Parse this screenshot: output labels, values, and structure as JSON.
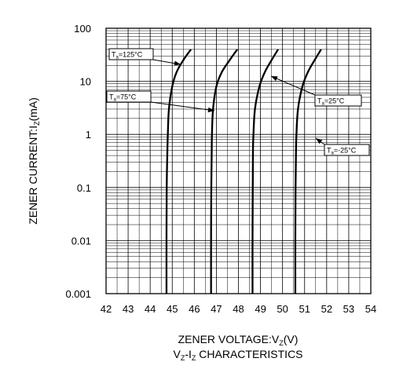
{
  "chart_data": {
    "type": "line",
    "title": "VZ-IZ CHARACTERISTICS",
    "xlabel": "ZENER VOLTAGE:VZ(V)",
    "ylabel": "ZENER CURRENT:IZ(mA)",
    "xlim": [
      42,
      54
    ],
    "ylim": [
      0.001,
      100
    ],
    "y_scale": "log",
    "grid": true,
    "x_ticks": [
      "42",
      "43",
      "44",
      "45",
      "46",
      "47",
      "48",
      "49",
      "50",
      "51",
      "52",
      "53",
      "54"
    ],
    "y_ticks": [
      "0.001",
      "0.01",
      "0.1",
      "1",
      "10",
      "100"
    ],
    "series": [
      {
        "name": "Ta=125°C",
        "x": [
          44.74,
          44.74,
          44.75,
          44.78,
          44.8,
          44.85,
          45.0,
          45.2,
          45.5,
          45.85
        ],
        "y": [
          0.001,
          0.01,
          0.1,
          0.5,
          1,
          3,
          8,
          15,
          25,
          40
        ]
      },
      {
        "name": "Ta=75°C",
        "x": [
          46.76,
          46.76,
          46.77,
          46.79,
          46.8,
          46.85,
          47.0,
          47.25,
          47.6,
          47.95
        ],
        "y": [
          0.001,
          0.01,
          0.1,
          0.5,
          1,
          3,
          8,
          15,
          25,
          40
        ]
      },
      {
        "name": "Ta=25°C",
        "x": [
          48.64,
          48.64,
          48.65,
          48.66,
          48.68,
          48.75,
          48.95,
          49.2,
          49.5,
          49.8
        ],
        "y": [
          0.001,
          0.01,
          0.1,
          0.5,
          1,
          3,
          8,
          15,
          25,
          40
        ]
      },
      {
        "name": "Ta=-25°C",
        "x": [
          50.58,
          50.58,
          50.59,
          50.61,
          50.63,
          50.7,
          50.9,
          51.15,
          51.45,
          51.75
        ],
        "y": [
          0.001,
          0.01,
          0.1,
          0.5,
          1,
          3,
          8,
          15,
          25,
          40
        ]
      }
    ],
    "annotations": [
      {
        "label_main": "T",
        "label_sub": "a",
        "label_rest": "=125°C",
        "series": "Ta=125°C",
        "point": [
          45.6,
          20
        ]
      },
      {
        "label_main": "T",
        "label_sub": "a",
        "label_rest": "=75°C",
        "series": "Ta=75°C",
        "point": [
          46.85,
          2.5
        ]
      },
      {
        "label_main": "T",
        "label_sub": "a",
        "label_rest": "=25°C",
        "series": "Ta=25°C",
        "point": [
          48.7,
          12
        ]
      },
      {
        "label_main": "T",
        "label_sub": "a",
        "label_rest": "=-25°C",
        "series": "Ta=-25°C",
        "point": [
          50.6,
          0.8
        ]
      }
    ]
  }
}
